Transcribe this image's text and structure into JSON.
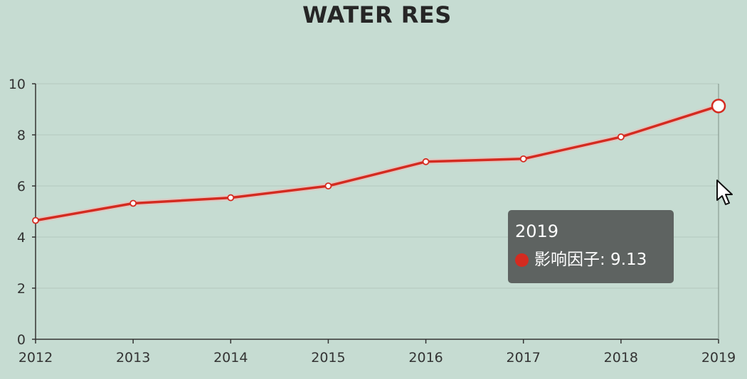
{
  "chart_data": {
    "type": "line",
    "title": "WATER RES",
    "x": [
      "2012",
      "2013",
      "2014",
      "2015",
      "2016",
      "2017",
      "2018",
      "2019"
    ],
    "series": [
      {
        "name": "影响因子",
        "values": [
          4.65,
          5.32,
          5.54,
          6.0,
          6.95,
          7.06,
          7.92,
          9.13
        ]
      }
    ],
    "yticks": [
      "0",
      "2",
      "4",
      "6",
      "8",
      "10"
    ],
    "ylim": [
      0,
      10
    ],
    "grid": true,
    "line_color": "#d42b20"
  },
  "tooltip": {
    "title": "2019",
    "series_name": "影响因子",
    "value": "9.13",
    "text": "影响因子: 9.13"
  }
}
